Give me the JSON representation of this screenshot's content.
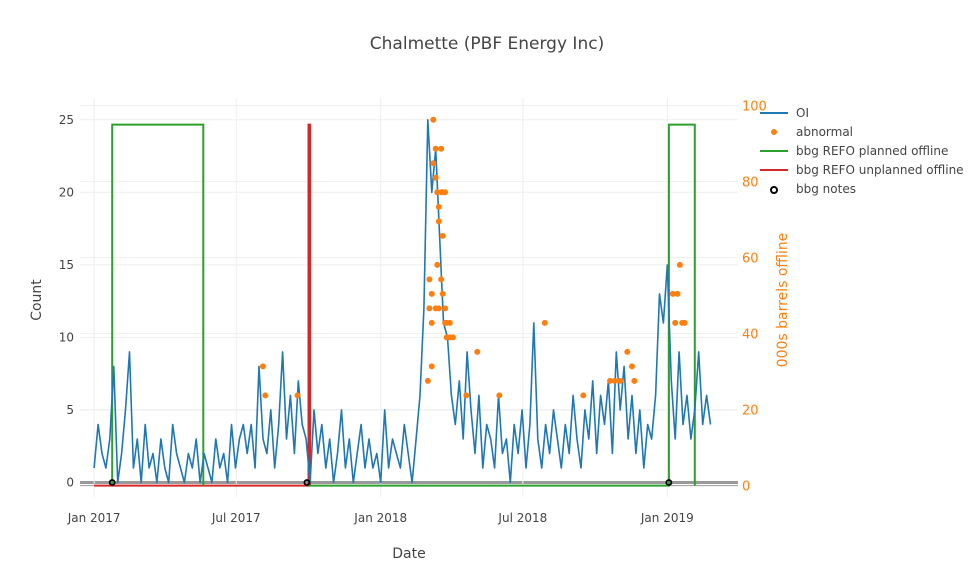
{
  "chart_data": {
    "type": "line",
    "title": "Chalmette (PBF Energy Inc)",
    "xlabel": "Date",
    "ylabel": "Count",
    "y2label": "000s barrels offline",
    "xlim": [
      "2016-12-14",
      "2019-04-01"
    ],
    "ylim": [
      -1,
      26.5
    ],
    "y2lim": [
      -3,
      102
    ],
    "xticks": [
      {
        "date": "2017-01-01",
        "label": "Jan 2017"
      },
      {
        "date": "2017-07-01",
        "label": "Jul 2017"
      },
      {
        "date": "2018-01-01",
        "label": "Jan 2018"
      },
      {
        "date": "2018-07-01",
        "label": "Jul 2018"
      },
      {
        "date": "2019-01-01",
        "label": "Jan 2019"
      }
    ],
    "yticks": [
      "0",
      "5",
      "10",
      "15",
      "20",
      "25"
    ],
    "y2ticks": [
      "0",
      "20",
      "40",
      "60",
      "80",
      "100"
    ],
    "legend_position": "top-right",
    "colors": {
      "oi": "#1f77b4",
      "abnormal": "#ff7f0e",
      "planned": "#2ca02c",
      "unplanned": "#d62728",
      "notes": "#000000",
      "y2axis": "#ff7f0e"
    },
    "series": [
      {
        "name": "OI",
        "start": "2017-01-01",
        "step_days": 5,
        "values": [
          1,
          4,
          2,
          1,
          3,
          8,
          0,
          2,
          5,
          9,
          1,
          3,
          0,
          4,
          1,
          2,
          0,
          3,
          1,
          0,
          4,
          2,
          1,
          0,
          2,
          1,
          3,
          0,
          2,
          1,
          0,
          3,
          1,
          2,
          0,
          4,
          1,
          3,
          4,
          2,
          4,
          1,
          8,
          3,
          2,
          5,
          1,
          4,
          9,
          3,
          6,
          2,
          7,
          4,
          3,
          0,
          5,
          2,
          4,
          1,
          3,
          0,
          2,
          5,
          1,
          3,
          0,
          2,
          4,
          1,
          3,
          1,
          2,
          0,
          5,
          1,
          3,
          2,
          1,
          4,
          2,
          0,
          3,
          6,
          12,
          25,
          20,
          23,
          17,
          11,
          10,
          6,
          4,
          7,
          3,
          9,
          5,
          2,
          6,
          1,
          4,
          3,
          1,
          6,
          2,
          3,
          0,
          4,
          2,
          5,
          1,
          4,
          11,
          3,
          1,
          4,
          2,
          5,
          3,
          1,
          4,
          2,
          6,
          3,
          1,
          5,
          3,
          7,
          2,
          6,
          4,
          7,
          2,
          9,
          5,
          8,
          3,
          6,
          2,
          5,
          1,
          4,
          3,
          6,
          13,
          11,
          15,
          7,
          3,
          9,
          4,
          6,
          3,
          5,
          9,
          4,
          6,
          4
        ]
      },
      {
        "name": "abnormal",
        "points": [
          [
            "2017-08-04",
            8
          ],
          [
            "2017-08-07",
            6
          ],
          [
            "2017-09-17",
            6
          ],
          [
            "2018-03-02",
            7
          ],
          [
            "2018-03-04",
            12
          ],
          [
            "2018-03-04",
            14
          ],
          [
            "2018-03-07",
            13
          ],
          [
            "2018-03-07",
            11
          ],
          [
            "2018-03-07",
            8
          ],
          [
            "2018-03-09",
            25
          ],
          [
            "2018-03-09",
            22
          ],
          [
            "2018-03-12",
            23
          ],
          [
            "2018-03-12",
            21
          ],
          [
            "2018-03-12",
            12
          ],
          [
            "2018-03-14",
            20
          ],
          [
            "2018-03-14",
            15
          ],
          [
            "2018-03-16",
            19
          ],
          [
            "2018-03-16",
            18
          ],
          [
            "2018-03-16",
            12
          ],
          [
            "2018-03-19",
            23
          ],
          [
            "2018-03-19",
            20
          ],
          [
            "2018-03-19",
            14
          ],
          [
            "2018-03-21",
            20
          ],
          [
            "2018-03-21",
            17
          ],
          [
            "2018-03-21",
            13
          ],
          [
            "2018-03-24",
            20
          ],
          [
            "2018-03-24",
            12
          ],
          [
            "2018-03-24",
            11
          ],
          [
            "2018-03-26",
            10
          ],
          [
            "2018-03-26",
            11
          ],
          [
            "2018-03-30",
            10
          ],
          [
            "2018-03-30",
            11
          ],
          [
            "2018-04-03",
            10
          ],
          [
            "2018-04-20",
            6
          ],
          [
            "2018-05-04",
            9
          ],
          [
            "2018-06-01",
            6
          ],
          [
            "2018-07-29",
            11
          ],
          [
            "2018-09-16",
            6
          ],
          [
            "2018-10-20",
            7
          ],
          [
            "2018-10-26",
            7
          ],
          [
            "2018-11-02",
            7
          ],
          [
            "2018-11-11",
            9
          ],
          [
            "2018-11-17",
            8
          ],
          [
            "2018-11-20",
            7
          ],
          [
            "2019-01-08",
            13
          ],
          [
            "2019-01-11",
            11
          ],
          [
            "2019-01-14",
            13
          ],
          [
            "2019-01-17",
            15
          ],
          [
            "2019-01-20",
            11
          ],
          [
            "2019-01-23",
            11
          ]
        ]
      },
      {
        "name": "bbg REFO planned offline",
        "axis": "y2",
        "points": [
          [
            "2017-10-01",
            0
          ],
          [
            "2019-01-03",
            0
          ],
          [
            "2019-01-03",
            95
          ],
          [
            "2019-02-05",
            95
          ],
          [
            "2019-02-05",
            0
          ]
        ],
        "early_points": [
          [
            "2017-01-24",
            0
          ],
          [
            "2017-01-24",
            95
          ],
          [
            "2017-05-20",
            95
          ],
          [
            "2017-05-20",
            0
          ]
        ]
      },
      {
        "name": "bbg REFO unplanned offline",
        "axis": "y2",
        "points": [
          [
            "2017-01-01",
            0
          ],
          [
            "2017-10-01",
            0
          ],
          [
            "2017-10-01",
            95
          ],
          [
            "2017-10-03",
            95
          ],
          [
            "2017-10-03",
            0
          ]
        ]
      },
      {
        "name": "bbg notes",
        "points": [
          [
            "2017-01-24",
            0
          ],
          [
            "2017-09-29",
            0
          ],
          [
            "2019-01-03",
            0
          ]
        ]
      }
    ]
  }
}
